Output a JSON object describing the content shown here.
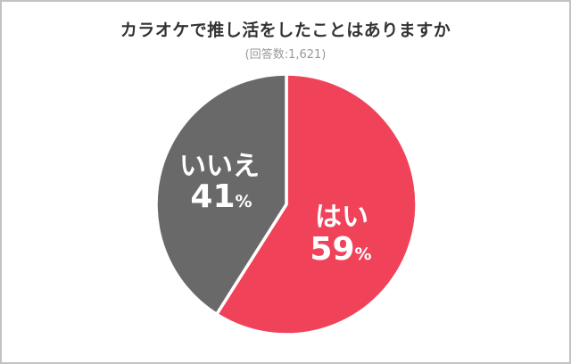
{
  "header": {
    "title": "カラオケで推し活をしたことはありますか",
    "subtitle": "(回答数:1,621)"
  },
  "chart_data": {
    "type": "pie",
    "title": "カラオケで推し活をしたことはありますか",
    "note": "(回答数:1,621)",
    "respondents": 1621,
    "start_angle_deg": 0,
    "direction": "clockwise",
    "legend": "none",
    "label_text_color": "#FFFFFF",
    "divider_color": "#FFFFFF",
    "slices": [
      {
        "name": "yes",
        "label": "はい",
        "value": 59,
        "unit": "%",
        "color": "#F0435A"
      },
      {
        "name": "no",
        "label": "いいえ",
        "value": 41,
        "unit": "%",
        "color": "#696969"
      }
    ]
  }
}
